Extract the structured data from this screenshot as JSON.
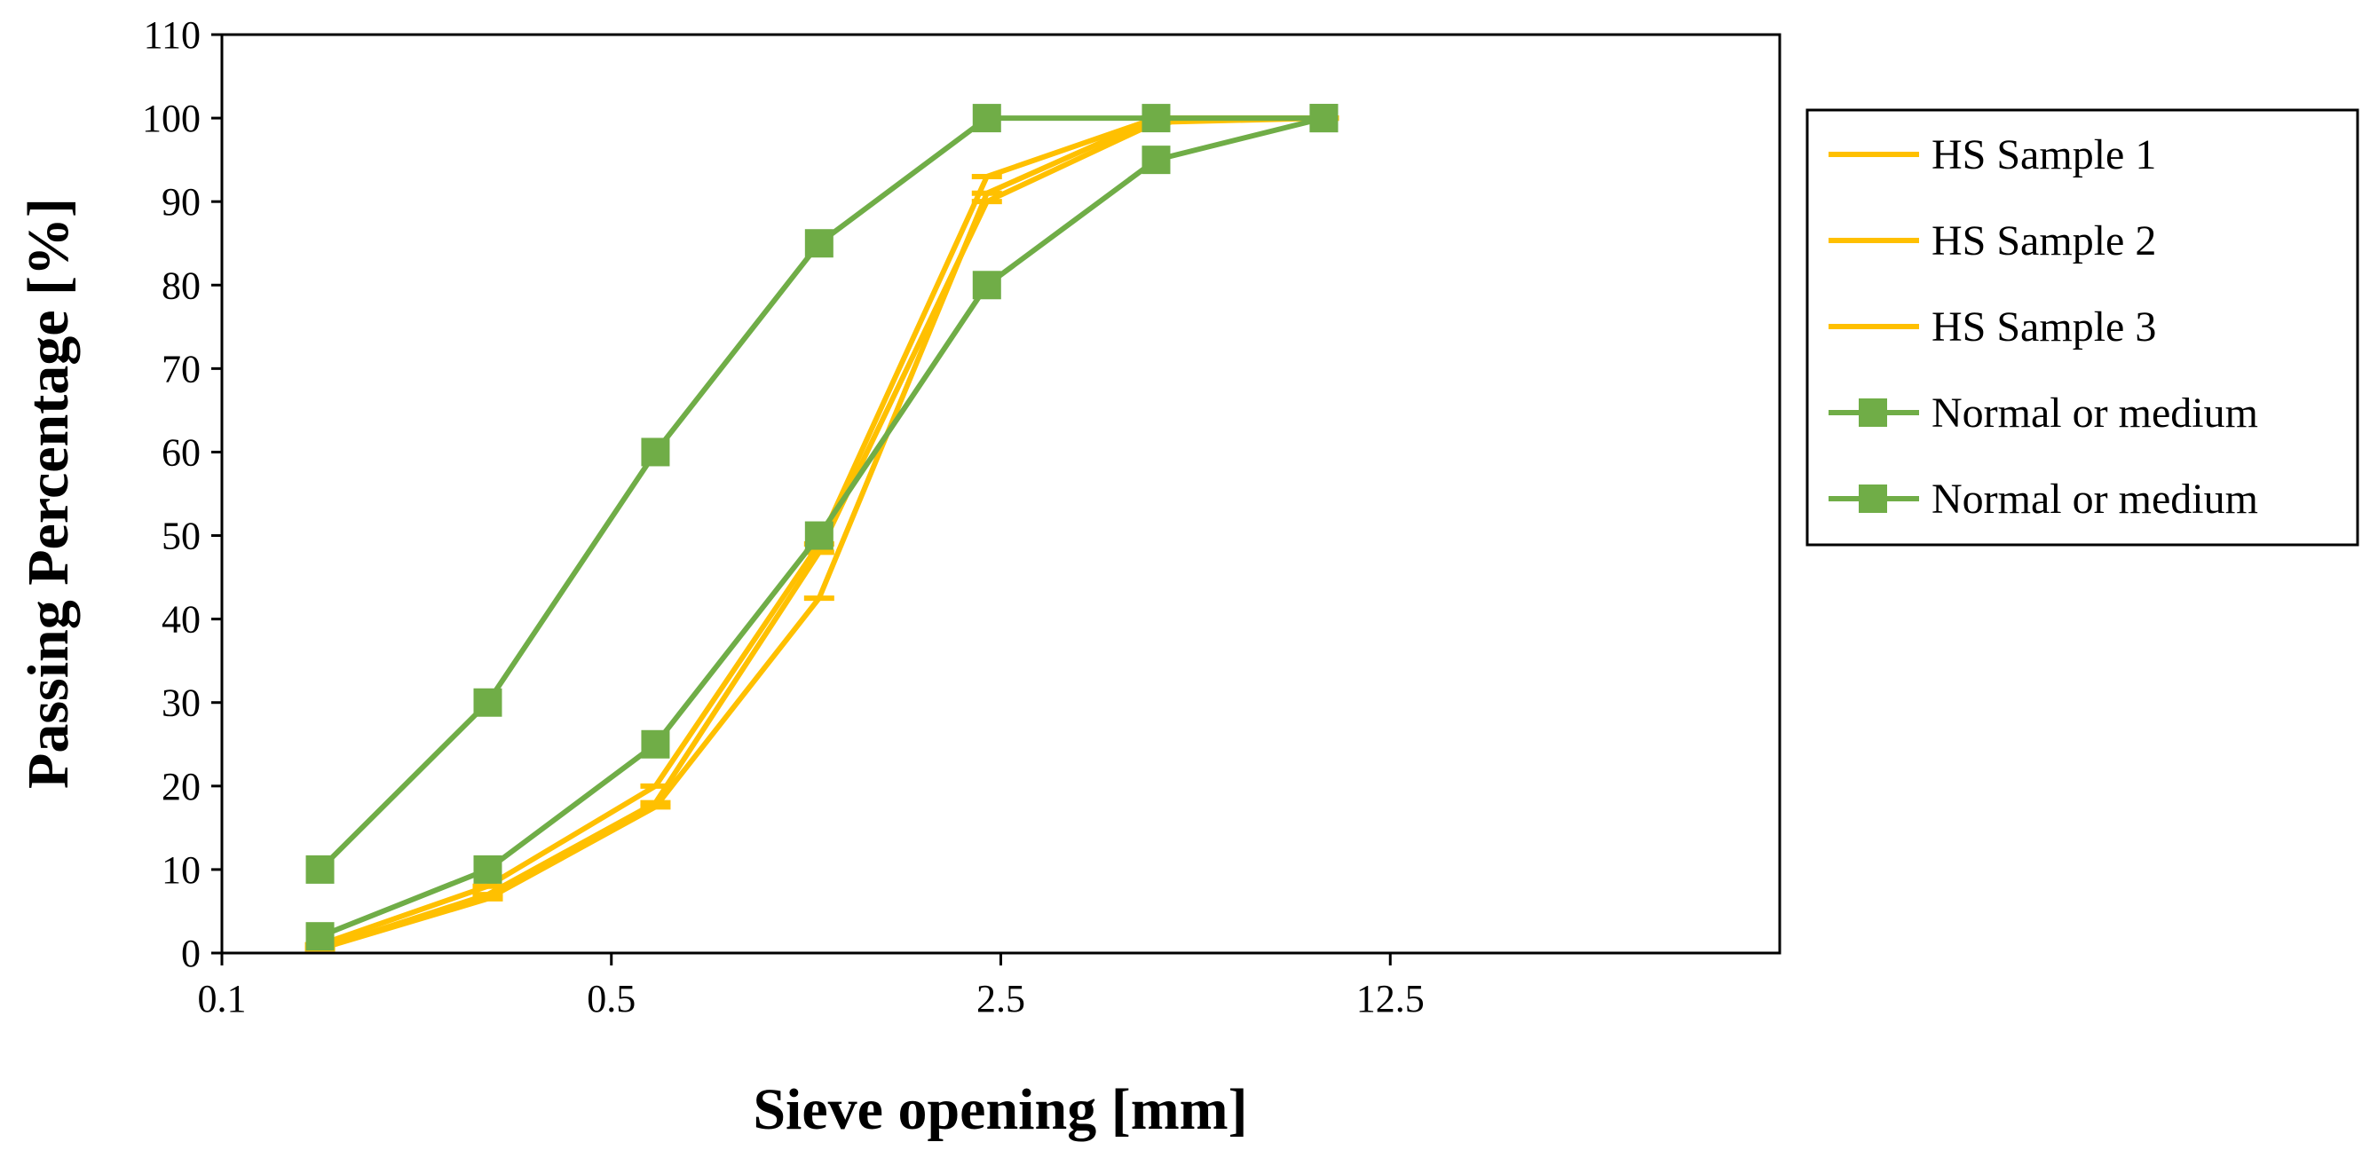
{
  "chart_data": {
    "type": "line",
    "title": "",
    "xlabel": "Sieve opening [mm]",
    "ylabel": "Passing Percentage  [%]",
    "x_scale": "log",
    "xlim": [
      0.1,
      62.5
    ],
    "ylim": [
      0,
      110
    ],
    "x_ticks": [
      0.1,
      0.5,
      2.5,
      12.5
    ],
    "x_tick_labels": [
      "0.1",
      "0.5",
      "2.5",
      "12.5"
    ],
    "y_ticks": [
      0,
      10,
      20,
      30,
      40,
      50,
      60,
      70,
      80,
      90,
      100,
      110
    ],
    "y_tick_labels": [
      "0",
      "10",
      "20",
      "30",
      "40",
      "50",
      "60",
      "70",
      "80",
      "90",
      "100",
      "110"
    ],
    "grid": false,
    "legend_position": "right",
    "x": [
      0.15,
      0.3,
      0.6,
      1.18,
      2.36,
      4.75,
      9.5
    ],
    "series": [
      {
        "name": "HS Sample 1",
        "color": "#FFC000",
        "marker": "dash",
        "values": [
          0.5,
          6.5,
          17.5,
          42.5,
          91,
          100,
          100
        ]
      },
      {
        "name": "HS Sample 2",
        "color": "#FFC000",
        "marker": "dash",
        "values": [
          0.5,
          7,
          18,
          48,
          90,
          99.5,
          100
        ]
      },
      {
        "name": "HS Sample 3",
        "color": "#FFC000",
        "marker": "dash",
        "values": [
          1,
          8,
          20,
          49,
          93,
          100,
          100
        ]
      },
      {
        "name": "Normal or medium",
        "color": "#70AD47",
        "marker": "square",
        "values": [
          10,
          30,
          60,
          85,
          100,
          100,
          100
        ]
      },
      {
        "name": "Normal or medium",
        "color": "#70AD47",
        "marker": "square",
        "values": [
          2,
          10,
          25,
          50,
          80,
          95,
          100
        ]
      }
    ]
  }
}
